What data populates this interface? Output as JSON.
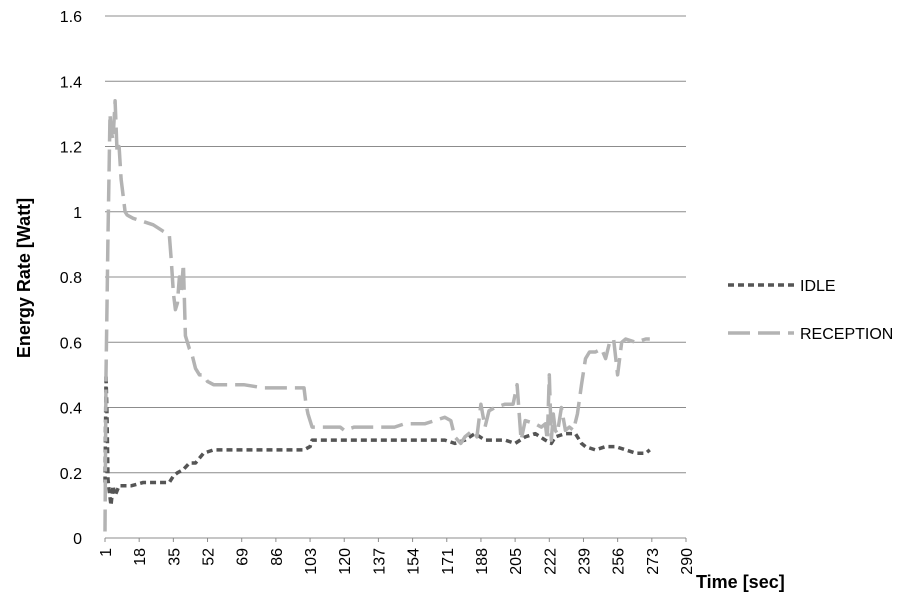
{
  "chart_data": {
    "type": "line",
    "title": "",
    "xlabel": "Time [sec]",
    "ylabel": "Energy Rate [Watt]",
    "xlim": [
      1,
      290
    ],
    "ylim": [
      0,
      1.6
    ],
    "y_ticks": [
      0,
      0.2,
      0.4,
      0.6,
      0.8,
      1,
      1.2,
      1.4,
      1.6
    ],
    "y_tick_labels": [
      "0",
      "0.2",
      "0.4",
      "0.6",
      "0.8",
      "1",
      "1.2",
      "1.4",
      "1.6"
    ],
    "x_ticks": [
      1,
      18,
      35,
      52,
      69,
      86,
      103,
      120,
      137,
      154,
      171,
      188,
      205,
      222,
      239,
      256,
      273,
      290
    ],
    "x_tick_labels": [
      "1",
      "18",
      "35",
      "52",
      "69",
      "86",
      "103",
      "120",
      "137",
      "154",
      "171",
      "188",
      "205",
      "222",
      "239",
      "256",
      "273",
      "290"
    ],
    "grid": "horizontal",
    "legend_position": "right",
    "series": [
      {
        "name": "IDLE",
        "style": "dashed",
        "color": "#555555",
        "x": [
          1,
          1.5,
          2,
          2.5,
          3,
          4,
          5,
          6,
          8,
          10,
          14,
          20,
          25,
          30,
          33,
          35,
          37,
          40,
          43,
          46,
          50,
          55,
          60,
          70,
          80,
          90,
          100,
          103,
          104,
          110,
          120,
          130,
          140,
          150,
          160,
          170,
          175,
          180,
          185,
          190,
          195,
          200,
          205,
          210,
          215,
          220,
          223,
          225,
          230,
          235,
          238,
          240,
          245,
          250,
          255,
          260,
          265,
          270,
          272
        ],
        "y": [
          0.17,
          0.5,
          0.38,
          0.18,
          0.15,
          0.1,
          0.16,
          0.13,
          0.16,
          0.16,
          0.16,
          0.17,
          0.17,
          0.17,
          0.17,
          0.19,
          0.2,
          0.21,
          0.23,
          0.23,
          0.26,
          0.27,
          0.27,
          0.27,
          0.27,
          0.27,
          0.27,
          0.28,
          0.3,
          0.3,
          0.3,
          0.3,
          0.3,
          0.3,
          0.3,
          0.3,
          0.29,
          0.3,
          0.32,
          0.3,
          0.3,
          0.3,
          0.29,
          0.31,
          0.32,
          0.3,
          0.29,
          0.31,
          0.32,
          0.32,
          0.29,
          0.28,
          0.27,
          0.28,
          0.28,
          0.27,
          0.26,
          0.26,
          0.27
        ]
      },
      {
        "name": "RECEPTION",
        "style": "long-dash",
        "color": "#b3b3b3",
        "x": [
          1,
          1.5,
          2,
          2.5,
          3,
          3.5,
          4,
          5,
          6,
          7,
          8,
          9,
          10,
          11,
          12,
          15,
          20,
          25,
          30,
          33,
          34,
          35,
          36,
          37,
          38,
          39,
          40,
          41,
          42,
          43,
          44,
          46,
          48,
          50,
          52,
          55,
          60,
          70,
          80,
          90,
          100,
          101,
          102,
          104,
          110,
          115,
          118,
          120,
          125,
          130,
          135,
          140,
          145,
          150,
          155,
          160,
          165,
          170,
          173,
          175,
          178,
          180,
          182,
          184,
          186,
          188,
          190,
          192,
          195,
          200,
          202,
          204,
          206,
          208,
          210,
          215,
          218,
          220,
          221,
          222,
          223,
          224,
          225,
          226,
          228,
          230,
          232,
          234,
          236,
          238,
          240,
          242,
          245,
          248,
          250,
          252,
          254,
          256,
          258,
          260,
          265,
          270,
          272
        ],
        "y": [
          0.02,
          0.5,
          0.71,
          0.93,
          1.11,
          1.3,
          1.25,
          1.22,
          1.34,
          1.18,
          1.2,
          1.1,
          1.05,
          1.0,
          0.99,
          0.98,
          0.97,
          0.96,
          0.94,
          0.93,
          0.85,
          0.75,
          0.7,
          0.72,
          0.8,
          0.76,
          0.84,
          0.62,
          0.6,
          0.58,
          0.57,
          0.52,
          0.5,
          0.5,
          0.48,
          0.47,
          0.47,
          0.47,
          0.46,
          0.46,
          0.46,
          0.41,
          0.38,
          0.34,
          0.34,
          0.34,
          0.34,
          0.33,
          0.34,
          0.34,
          0.34,
          0.34,
          0.34,
          0.35,
          0.35,
          0.35,
          0.36,
          0.37,
          0.36,
          0.31,
          0.29,
          0.31,
          0.32,
          0.33,
          0.31,
          0.41,
          0.34,
          0.39,
          0.4,
          0.41,
          0.41,
          0.41,
          0.47,
          0.3,
          0.36,
          0.35,
          0.34,
          0.35,
          0.3,
          0.5,
          0.3,
          0.38,
          0.33,
          0.32,
          0.4,
          0.33,
          0.34,
          0.33,
          0.38,
          0.47,
          0.55,
          0.57,
          0.57,
          0.58,
          0.55,
          0.6,
          0.61,
          0.5,
          0.6,
          0.61,
          0.6,
          0.61,
          0.61
        ]
      }
    ]
  }
}
